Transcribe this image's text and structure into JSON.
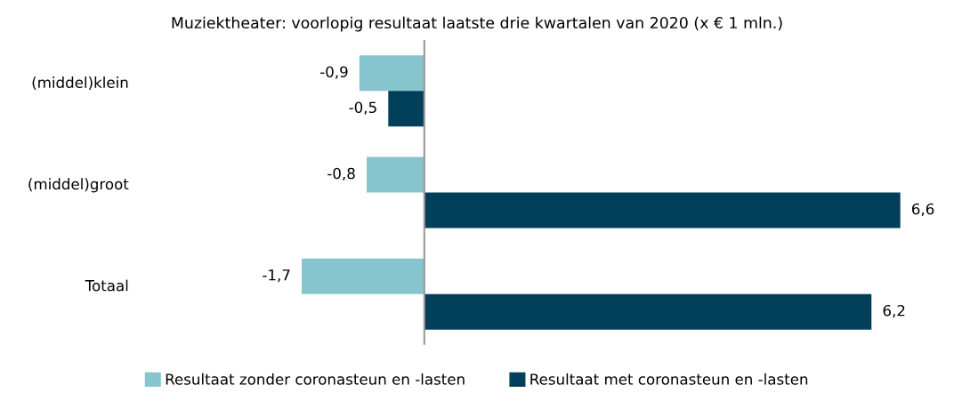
{
  "chart_data": {
    "type": "bar",
    "orientation": "horizontal",
    "title": "Muziektheater: voorlopig resultaat laatste drie kwartalen van 2020 (x € 1 mln.)",
    "categories": [
      "(middel)klein",
      "(middel)groot",
      "Totaal"
    ],
    "series": [
      {
        "name": "Resultaat zonder coronasteun en -lasten",
        "color": "#86c4ce",
        "values": [
          -0.9,
          -0.8,
          -1.7
        ],
        "value_labels": [
          "-0,9",
          "-0,8",
          "-1,7"
        ]
      },
      {
        "name": "Resultaat met coronasteun en -lasten",
        "color": "#023f5a",
        "values": [
          -0.5,
          6.6,
          6.2
        ],
        "value_labels": [
          "-0,5",
          "6,6",
          "6,2"
        ]
      }
    ],
    "legend": "bottom"
  }
}
